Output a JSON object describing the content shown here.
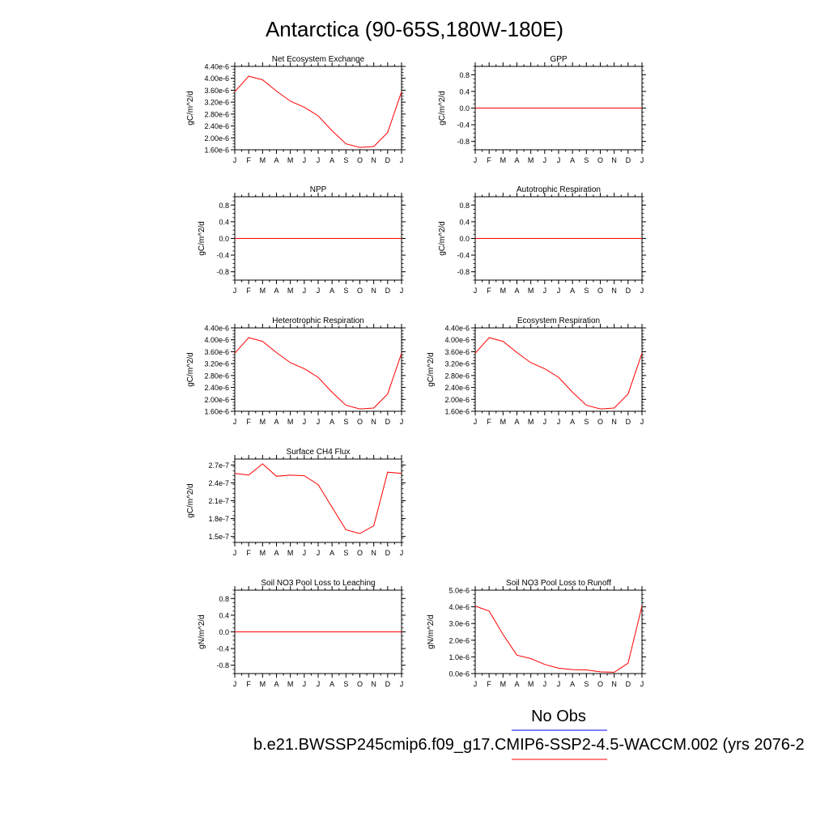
{
  "figure": {
    "title": "Antarctica (90-65S,180W-180E)",
    "legend_obs": "No Obs",
    "legend_case": "b.e21.BWSSP245cmip6.f09_g17.CMIP6-SSP2-4.5-WACCM.002 (yrs 2076-2",
    "obs_color": "#0000ff",
    "case_color": "#ff0000",
    "line_color": "#ff0000",
    "month_labels": [
      "J",
      "F",
      "M",
      "A",
      "M",
      "J",
      "J",
      "A",
      "S",
      "O",
      "N",
      "D",
      "J"
    ]
  },
  "chart_data": [
    {
      "type": "line",
      "title": "Net Ecosystem Exchange",
      "ylabel": "gC/m^2/d",
      "x": [
        1,
        2,
        3,
        4,
        5,
        6,
        7,
        8,
        9,
        10,
        11,
        12,
        13
      ],
      "yticks": [
        "1.60e-6",
        "2.00e-6",
        "2.40e-6",
        "2.80e-6",
        "3.20e-6",
        "3.60e-6",
        "4.00e-6",
        "4.40e-6"
      ],
      "ytick_values": [
        1.6e-06,
        2e-06,
        2.4e-06,
        2.8e-06,
        3.2e-06,
        3.6e-06,
        4e-06,
        4.4e-06
      ],
      "ylim": [
        1.6e-06,
        4.4e-06
      ],
      "series": [
        {
          "values": [
            3.55e-06,
            4.07e-06,
            3.95e-06,
            3.57e-06,
            3.23e-06,
            3.03e-06,
            2.74e-06,
            2.24e-06,
            1.8e-06,
            1.68e-06,
            1.71e-06,
            2.18e-06,
            3.55e-06
          ]
        }
      ]
    },
    {
      "type": "line",
      "title": "GPP",
      "ylabel": "gC/m^2/d",
      "x": [
        1,
        2,
        3,
        4,
        5,
        6,
        7,
        8,
        9,
        10,
        11,
        12,
        13
      ],
      "yticks": [
        "-0.8",
        "-0.4",
        "0.0",
        "0.4",
        "0.8"
      ],
      "ytick_values": [
        -0.8,
        -0.4,
        0,
        0.4,
        0.8
      ],
      "ylim": [
        -1,
        1
      ],
      "series": [
        {
          "values": [
            0,
            0,
            0,
            0,
            0,
            0,
            0,
            0,
            0,
            0,
            0,
            0,
            0
          ]
        }
      ]
    },
    {
      "type": "line",
      "title": "NPP",
      "ylabel": "gC/m^2/d",
      "x": [
        1,
        2,
        3,
        4,
        5,
        6,
        7,
        8,
        9,
        10,
        11,
        12,
        13
      ],
      "yticks": [
        "-0.8",
        "-0.4",
        "0.0",
        "0.4",
        "0.8"
      ],
      "ytick_values": [
        -0.8,
        -0.4,
        0,
        0.4,
        0.8
      ],
      "ylim": [
        -1,
        1
      ],
      "series": [
        {
          "values": [
            0,
            0,
            0,
            0,
            0,
            0,
            0,
            0,
            0,
            0,
            0,
            0,
            0
          ]
        }
      ]
    },
    {
      "type": "line",
      "title": "Autotrophic Respiration",
      "ylabel": "gC/m^2/d",
      "x": [
        1,
        2,
        3,
        4,
        5,
        6,
        7,
        8,
        9,
        10,
        11,
        12,
        13
      ],
      "yticks": [
        "-0.8",
        "-0.4",
        "0.0",
        "0.4",
        "0.8"
      ],
      "ytick_values": [
        -0.8,
        -0.4,
        0,
        0.4,
        0.8
      ],
      "ylim": [
        -1,
        1
      ],
      "series": [
        {
          "values": [
            0,
            0,
            0,
            0,
            0,
            0,
            0,
            0,
            0,
            0,
            0,
            0,
            0
          ]
        }
      ]
    },
    {
      "type": "line",
      "title": "Heterotrophic Respiration",
      "ylabel": "gC/m^2/d",
      "x": [
        1,
        2,
        3,
        4,
        5,
        6,
        7,
        8,
        9,
        10,
        11,
        12,
        13
      ],
      "yticks": [
        "1.60e-6",
        "2.00e-6",
        "2.40e-6",
        "2.80e-6",
        "3.20e-6",
        "3.60e-6",
        "4.00e-6",
        "4.40e-6"
      ],
      "ytick_values": [
        1.6e-06,
        2e-06,
        2.4e-06,
        2.8e-06,
        3.2e-06,
        3.6e-06,
        4e-06,
        4.4e-06
      ],
      "ylim": [
        1.6e-06,
        4.4e-06
      ],
      "series": [
        {
          "values": [
            3.55e-06,
            4.07e-06,
            3.95e-06,
            3.57e-06,
            3.23e-06,
            3.03e-06,
            2.74e-06,
            2.24e-06,
            1.8e-06,
            1.68e-06,
            1.71e-06,
            2.18e-06,
            3.55e-06
          ]
        }
      ]
    },
    {
      "type": "line",
      "title": "Ecosystem Respiration",
      "ylabel": "gC/m^2/d",
      "x": [
        1,
        2,
        3,
        4,
        5,
        6,
        7,
        8,
        9,
        10,
        11,
        12,
        13
      ],
      "yticks": [
        "1.60e-6",
        "2.00e-6",
        "2.40e-6",
        "2.80e-6",
        "3.20e-6",
        "3.60e-6",
        "4.00e-6",
        "4.40e-6"
      ],
      "ytick_values": [
        1.6e-06,
        2e-06,
        2.4e-06,
        2.8e-06,
        3.2e-06,
        3.6e-06,
        4e-06,
        4.4e-06
      ],
      "ylim": [
        1.6e-06,
        4.4e-06
      ],
      "series": [
        {
          "values": [
            3.55e-06,
            4.07e-06,
            3.95e-06,
            3.57e-06,
            3.23e-06,
            3.03e-06,
            2.74e-06,
            2.24e-06,
            1.8e-06,
            1.68e-06,
            1.71e-06,
            2.18e-06,
            3.55e-06
          ]
        }
      ]
    },
    {
      "type": "line",
      "title": "Surface CH4 Flux",
      "ylabel": "gC/m^2/d",
      "x": [
        1,
        2,
        3,
        4,
        5,
        6,
        7,
        8,
        9,
        10,
        11,
        12,
        13
      ],
      "yticks": [
        "1.5e-7",
        "1.8e-7",
        "2.1e-7",
        "2.4e-7",
        "2.7e-7"
      ],
      "ytick_values": [
        1.5e-07,
        1.8e-07,
        2.1e-07,
        2.4e-07,
        2.7e-07
      ],
      "ylim": [
        1.4e-07,
        2.8e-07
      ],
      "series": [
        {
          "values": [
            2.56e-07,
            2.53e-07,
            2.72e-07,
            2.51e-07,
            2.53e-07,
            2.52e-07,
            2.37e-07,
            1.99e-07,
            1.61e-07,
            1.55e-07,
            1.68e-07,
            2.58e-07,
            2.56e-07
          ]
        }
      ]
    },
    {
      "type": "line",
      "title": "Soil NO3 Pool Loss to Leaching",
      "ylabel": "gN/m^2/d",
      "x": [
        1,
        2,
        3,
        4,
        5,
        6,
        7,
        8,
        9,
        10,
        11,
        12,
        13
      ],
      "yticks": [
        "-0.8",
        "-0.4",
        "0.0",
        "0.4",
        "0.8"
      ],
      "ytick_values": [
        -0.8,
        -0.4,
        0,
        0.4,
        0.8
      ],
      "ylim": [
        -1,
        1
      ],
      "series": [
        {
          "values": [
            0,
            0,
            0,
            0,
            0,
            0,
            0,
            0,
            0,
            0,
            0,
            0,
            0
          ]
        }
      ]
    },
    {
      "type": "line",
      "title": "Soil NO3 Pool Loss to Runoff",
      "ylabel": "gN/m^2/d",
      "x": [
        1,
        2,
        3,
        4,
        5,
        6,
        7,
        8,
        9,
        10,
        11,
        12,
        13
      ],
      "yticks": [
        "0.0e-6",
        "1.0e-6",
        "2.0e-6",
        "3.0e-6",
        "4.0e-6",
        "5.0e-6"
      ],
      "ytick_values": [
        0,
        1e-06,
        2e-06,
        3e-06,
        4e-06,
        5e-06
      ],
      "ylim": [
        0,
        5e-06
      ],
      "series": [
        {
          "values": [
            4.05e-06,
            3.75e-06,
            2.35e-06,
            1.1e-06,
            9e-07,
            5.5e-07,
            3.2e-07,
            2.4e-07,
            2.2e-07,
            1e-07,
            8e-08,
            6.2e-07,
            4.05e-06
          ]
        }
      ]
    }
  ]
}
